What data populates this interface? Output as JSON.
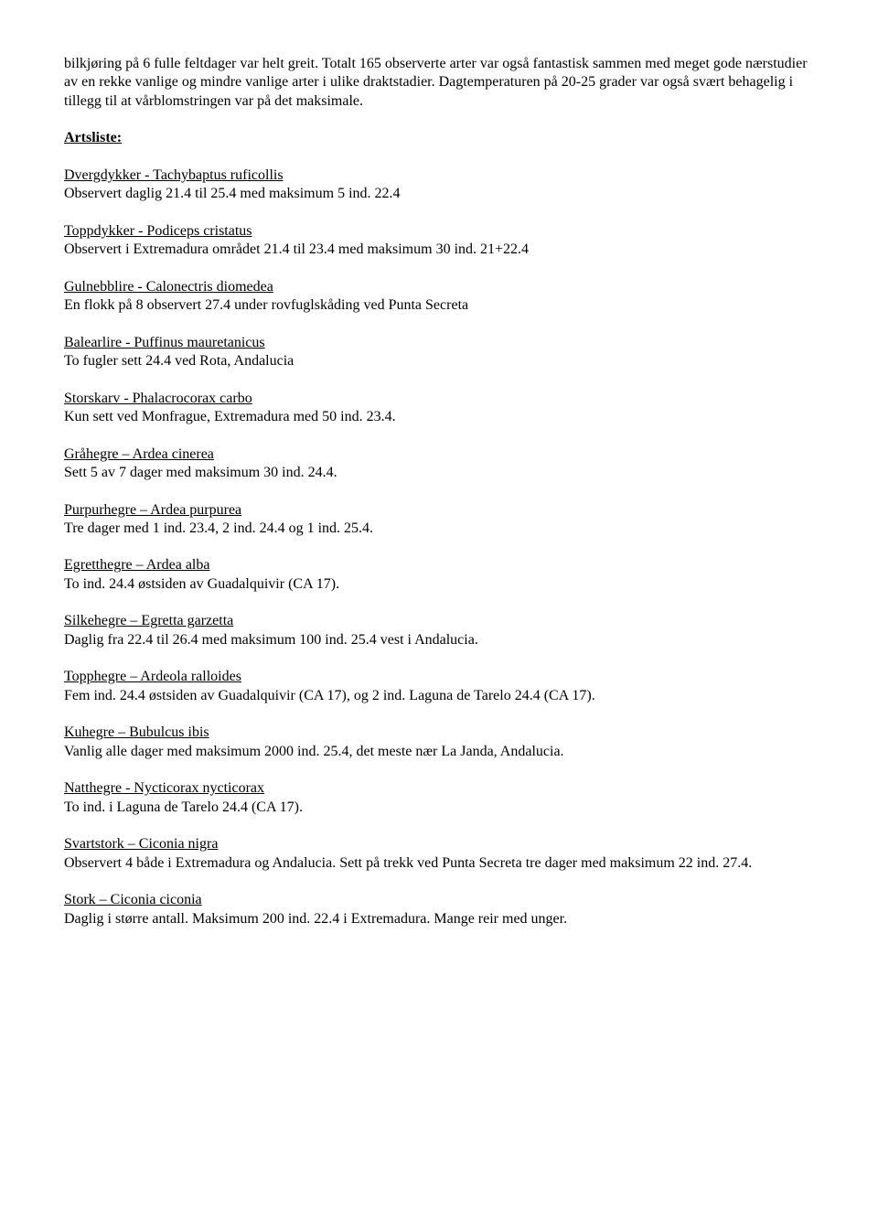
{
  "intro": "bilkjøring på 6 fulle feltdager var helt greit. Totalt 165 observerte arter var også fantastisk sammen med meget gode nærstudier av en rekke vanlige og mindre vanlige arter i ulike draktstadier. Dagtemperaturen på 20-25 grader var også svært behagelig i tillegg til at vårblomstringen var på det maksimale.",
  "heading": "Artsliste:",
  "species": [
    {
      "name": "Dvergdykker - Tachybaptus ruficollis",
      "obs": "Observert daglig 21.4 til 25.4 med maksimum 5 ind. 22.4"
    },
    {
      "name": "Toppdykker - Podiceps cristatus",
      "obs": "Observert i Extremadura området 21.4 til 23.4 med maksimum 30 ind. 21+22.4"
    },
    {
      "name": "Gulnebblire - Calonectris diomedea",
      "obs": "En flokk på 8 observert 27.4 under rovfuglskåding ved Punta Secreta"
    },
    {
      "name": "Balearlire - Puffinus mauretanicus",
      "obs": "To fugler sett 24.4 ved Rota, Andalucia"
    },
    {
      "name": "Storskarv - Phalacrocorax carbo",
      "obs": "Kun sett ved Monfrague, Extremadura med 50 ind. 23.4."
    },
    {
      "name": "Gråhegre – Ardea cinerea",
      "obs": "Sett 5 av 7 dager med maksimum 30 ind. 24.4."
    },
    {
      "name": "Purpurhegre – Ardea purpurea",
      "obs": "Tre dager med 1 ind. 23.4, 2 ind. 24.4 og 1 ind. 25.4."
    },
    {
      "name": "Egretthegre – Ardea alba",
      "obs": "To ind. 24.4 østsiden av Guadalquivir (CA 17)."
    },
    {
      "name": "Silkehegre – Egretta garzetta",
      "obs": "Daglig fra 22.4 til 26.4 med maksimum 100 ind. 25.4 vest i Andalucia."
    },
    {
      "name": "Topphegre – Ardeola ralloides",
      "obs": "Fem ind. 24.4 østsiden av Guadalquivir (CA 17), og 2 ind. Laguna de Tarelo 24.4 (CA 17)."
    },
    {
      "name": "Kuhegre – Bubulcus ibis",
      "obs": "Vanlig alle dager med maksimum 2000 ind. 25.4, det meste nær La Janda, Andalucia."
    },
    {
      "name": "Natthegre - Nycticorax nycticorax",
      "obs": "To ind. i Laguna de Tarelo 24.4 (CA 17)."
    },
    {
      "name": "Svartstork – Ciconia nigra",
      "obs": "Observert 4 både i Extremadura og Andalucia. Sett på trekk ved Punta Secreta tre dager med maksimum 22 ind. 27.4."
    },
    {
      "name": "Stork – Ciconia ciconia",
      "obs": "Daglig i større antall. Maksimum 200 ind. 22.4 i Extremadura. Mange reir med unger."
    }
  ]
}
